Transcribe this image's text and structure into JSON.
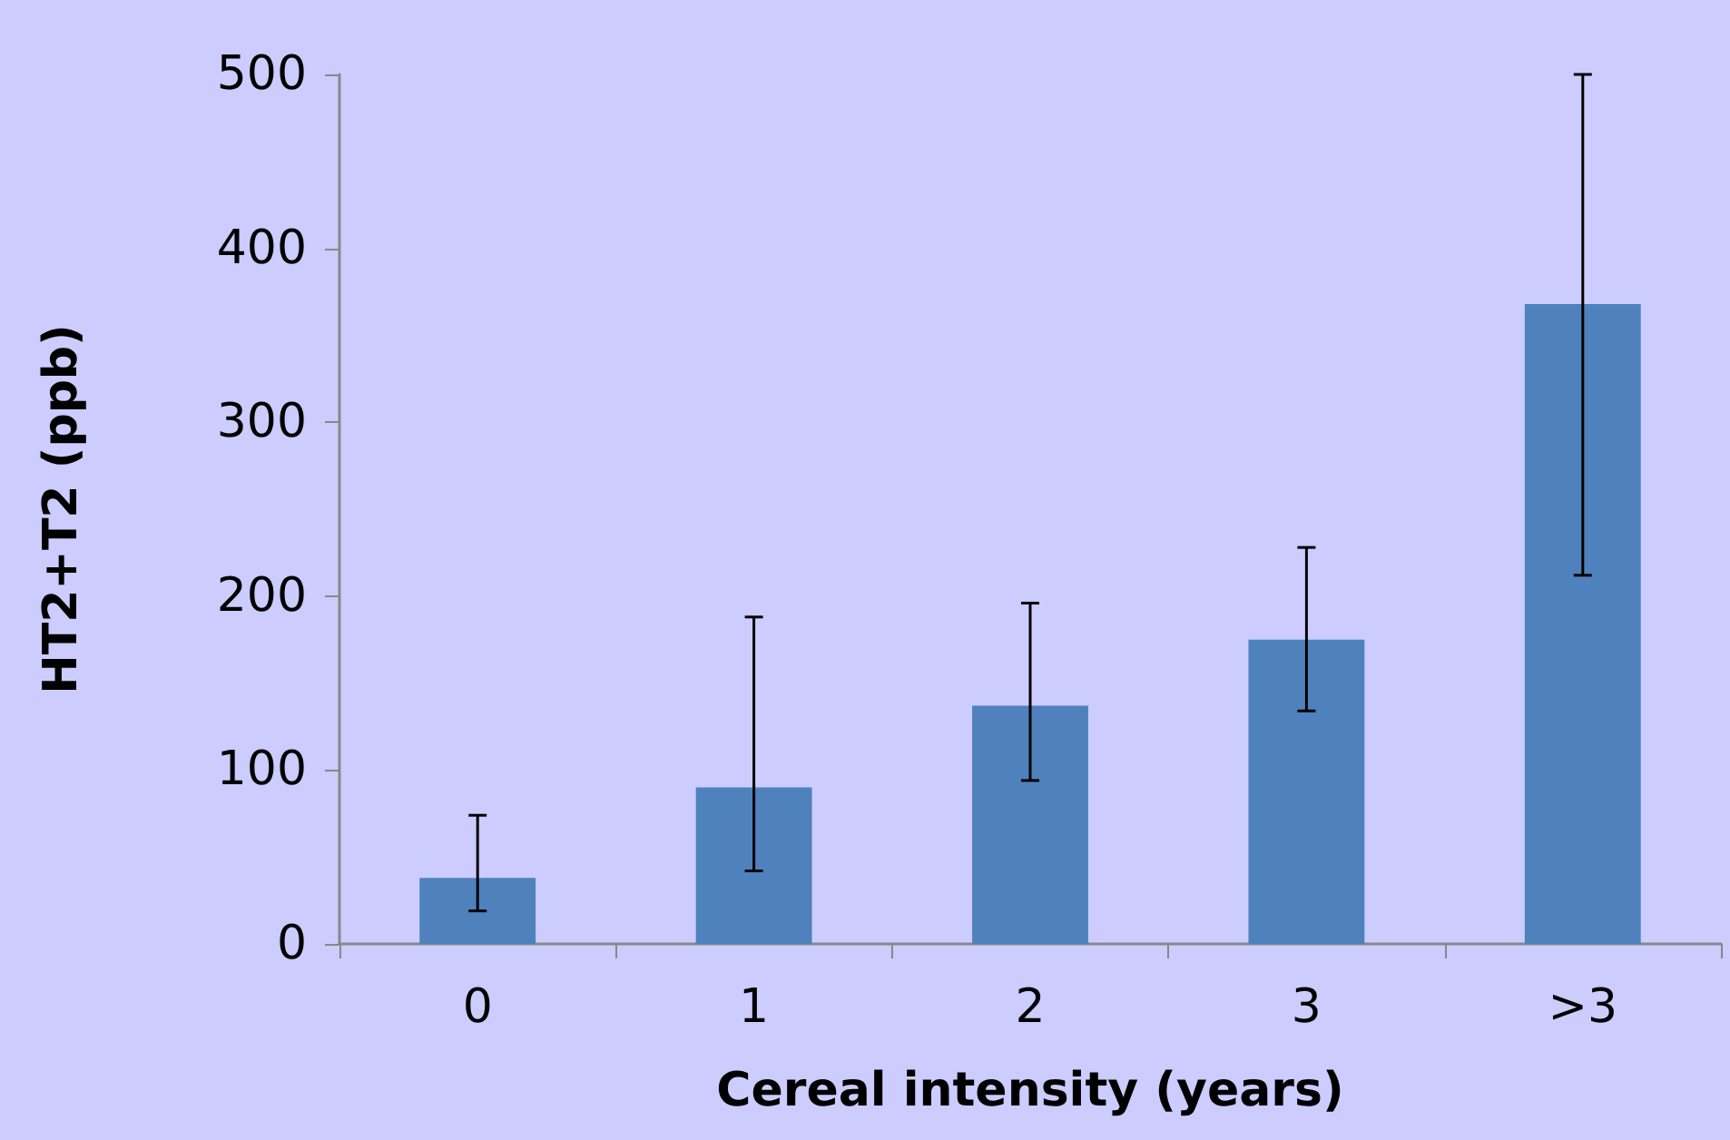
{
  "chart_data": {
    "type": "bar",
    "xlabel": "Cereal intensity (years)",
    "ylabel": "HT2+T2 (ppb)",
    "categories": [
      "0",
      "1",
      "2",
      "3",
      ">3"
    ],
    "series": [
      {
        "color": "#4f81bd",
        "values": [
          38,
          90,
          137,
          175,
          368
        ],
        "errors": [
          [
            19,
            74
          ],
          [
            42,
            188
          ],
          [
            94,
            196
          ],
          [
            134,
            228
          ],
          [
            212,
            500
          ]
        ]
      }
    ],
    "ylim": [
      0,
      500
    ],
    "yticks": [
      0,
      100,
      200,
      300,
      400,
      500
    ],
    "grid": false
  }
}
